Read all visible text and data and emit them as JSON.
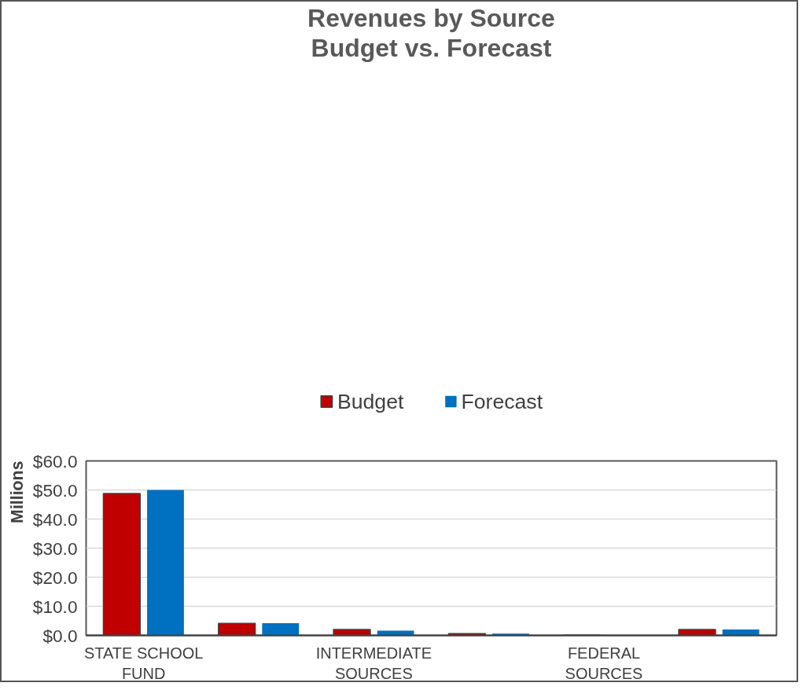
{
  "chart_data": {
    "type": "bar",
    "title": "Revenues by Source",
    "subtitle": "Budget vs. Forecast",
    "ylabel": "Millions",
    "categories": [
      "STATE SCHOOL\nFUND",
      null,
      "INTERMEDIATE\nSOURCES",
      null,
      "FEDERAL\nSOURCES",
      null
    ],
    "series": [
      {
        "name": "Budget",
        "color": "#c00000",
        "values": [
          48.8,
          4.1,
          2.0,
          0.6,
          0.1,
          2.0
        ]
      },
      {
        "name": "Forecast",
        "color": "#0070c0",
        "values": [
          50.0,
          4.2,
          1.6,
          0.6,
          0.1,
          2.0
        ]
      }
    ],
    "ylim": [
      0,
      60
    ],
    "yticks": [
      {
        "value": 0,
        "label": "$0.0"
      },
      {
        "value": 10,
        "label": "$10.0"
      },
      {
        "value": 20,
        "label": "$20.0"
      },
      {
        "value": 30,
        "label": "$30.0"
      },
      {
        "value": 40,
        "label": "$40.0"
      },
      {
        "value": 50,
        "label": "$50.0"
      },
      {
        "value": 60,
        "label": "$60.0"
      }
    ],
    "grid": "y",
    "legend": "top"
  }
}
